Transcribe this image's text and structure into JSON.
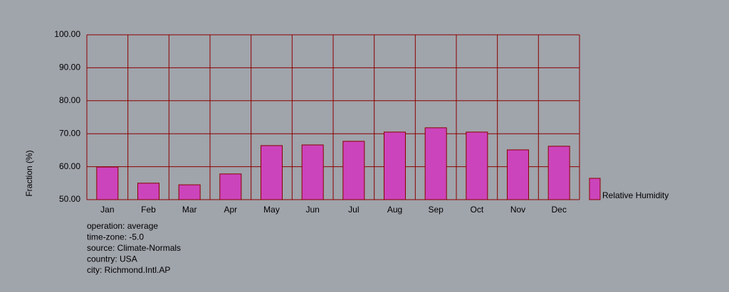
{
  "chart_data": {
    "type": "bar",
    "y_label": "Fraction (%)",
    "categories": [
      "Jan",
      "Feb",
      "Mar",
      "Apr",
      "May",
      "Jun",
      "Jul",
      "Aug",
      "Sep",
      "Oct",
      "Nov",
      "Dec"
    ],
    "series": [
      {
        "name": "Relative Humidity",
        "color": "#cc44bb",
        "values": [
          59.9,
          55.0,
          54.5,
          57.8,
          66.4,
          66.6,
          67.7,
          70.5,
          71.8,
          70.5,
          65.1,
          66.2
        ]
      }
    ],
    "ylim": [
      50,
      100
    ],
    "yticks": [
      {
        "value": 50,
        "label": "50.00"
      },
      {
        "value": 60,
        "label": "60.00"
      },
      {
        "value": 70,
        "label": "70.00"
      },
      {
        "value": 80,
        "label": "80.00"
      },
      {
        "value": 90,
        "label": "90.00"
      },
      {
        "value": 100,
        "label": "100.00"
      }
    ],
    "grid": true,
    "legend": "right",
    "annotations": [
      "operation: average",
      "time-zone: -5.0",
      "source: Climate-Normals",
      "country: USA",
      "city: Richmond.Intl.AP"
    ]
  }
}
